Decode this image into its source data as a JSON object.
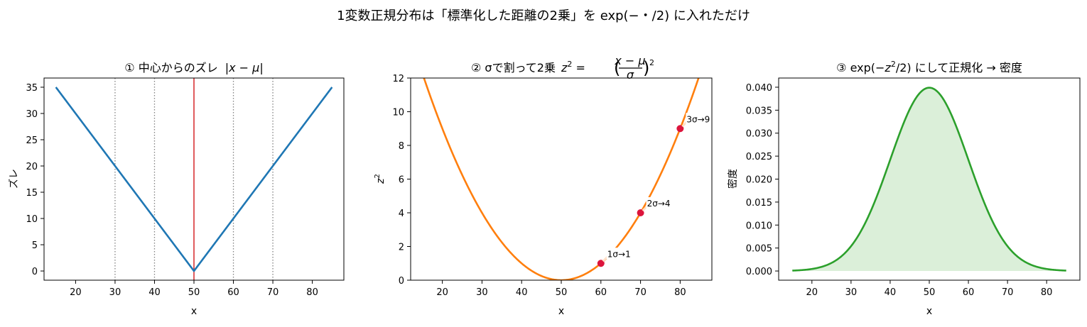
{
  "figure": {
    "suptitle": "1変数正規分布は「標準化した距離の2乗」を exp(−・/2) に入れただけ"
  },
  "chart_data": [
    {
      "type": "line",
      "title_parts": [
        "① 中心からのズレ",
        "|",
        "x",
        " − ",
        "μ",
        "|"
      ],
      "xlabel": "x",
      "ylabel": "ズレ",
      "xlim": [
        12,
        88
      ],
      "ylim": [
        -1.75,
        36.75
      ],
      "xticks": [
        "20",
        "30",
        "40",
        "50",
        "60",
        "70",
        "80"
      ],
      "yticks": [
        "0",
        "5",
        "10",
        "15",
        "20",
        "25",
        "30",
        "35"
      ],
      "mu": 50,
      "sigma": 10,
      "x_range": [
        15,
        85
      ],
      "series": [
        {
          "color": "#1f77b4"
        }
      ],
      "vline": {
        "x": 50,
        "color": "#d62728"
      },
      "dotted_vlines": [
        30,
        40,
        60,
        70
      ],
      "grid": false
    },
    {
      "type": "line",
      "title_parts": [
        "② σで割って2乗",
        "z",
        "2",
        " = ",
        "x − μ",
        "σ",
        "2"
      ],
      "xlabel": "x",
      "ylabel": "z",
      "ylabel_sup": "2",
      "xlim": [
        12,
        88
      ],
      "ylim": [
        0,
        12
      ],
      "xticks": [
        "20",
        "30",
        "40",
        "50",
        "60",
        "70",
        "80"
      ],
      "yticks": [
        "0",
        "2",
        "4",
        "6",
        "8",
        "10",
        "12"
      ],
      "mu": 50,
      "sigma": 10,
      "x_range": [
        12,
        88
      ],
      "series": [
        {
          "color": "#ff7f0e"
        }
      ],
      "points": [
        {
          "x": 60,
          "y": 1,
          "label": "1σ→1"
        },
        {
          "x": 70,
          "y": 4,
          "label": "2σ→4"
        },
        {
          "x": 80,
          "y": 9,
          "label": "3σ→9"
        }
      ],
      "point_color": "#dc143c",
      "grid": false
    },
    {
      "type": "area",
      "title_parts": [
        "③ exp(",
        "−z",
        "2",
        "/2) にして正規化 → 密度"
      ],
      "xlabel": "x",
      "ylabel": "密度",
      "xlim": [
        11.5,
        88.5
      ],
      "ylim": [
        -0.002,
        0.042
      ],
      "xticks": [
        "20",
        "30",
        "40",
        "50",
        "60",
        "70",
        "80"
      ],
      "yticks": [
        "0.000",
        "0.005",
        "0.010",
        "0.015",
        "0.020",
        "0.025",
        "0.030",
        "0.035",
        "0.040"
      ],
      "mu": 50,
      "sigma": 10,
      "x_range": [
        15,
        85
      ],
      "series": [
        {
          "color": "#2ca02c",
          "fill": "#dbefd9"
        }
      ],
      "grid": false
    }
  ]
}
